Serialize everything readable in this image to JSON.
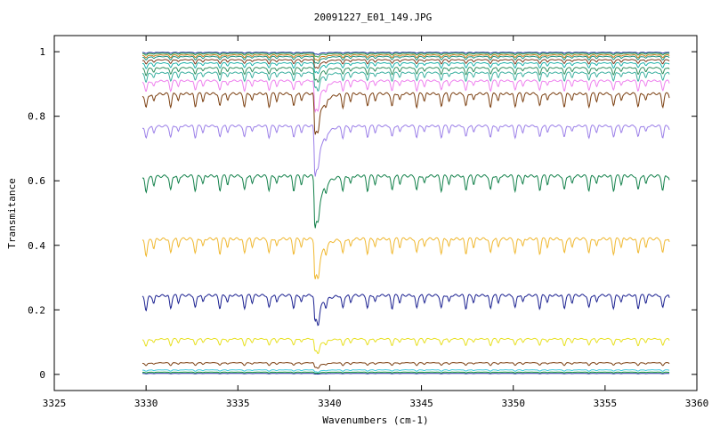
{
  "chart_data": {
    "type": "line",
    "title": "20091227_E01_149.JPG",
    "xlabel": "Wavenumbers (cm-1)",
    "ylabel": "Transmitance",
    "xlim": [
      3325,
      3360
    ],
    "ylim": [
      -0.05,
      1.05
    ],
    "x_ticks": [
      3325,
      3330,
      3335,
      3340,
      3345,
      3350,
      3355,
      3360
    ],
    "y_ticks": [
      0,
      0.2,
      0.4,
      0.6,
      0.8,
      1
    ],
    "x_tick_labels": [
      "3325",
      "3330",
      "3335",
      "3340",
      "3345",
      "3350",
      "3355",
      "3360"
    ],
    "y_tick_labels": [
      "0",
      "0.2",
      "0.4",
      "0.6",
      "0.8",
      "1"
    ],
    "grid": false,
    "legend": "none",
    "x_range_of_data": [
      3329.8,
      3358.5
    ],
    "main_line_x": 3339.2,
    "comb_line_spacing": 1.34,
    "comb_first_line_x": 3330.0,
    "series": [
      {
        "color": "#1f2f9f",
        "baseline": 0.998,
        "weak_dip": 0.003,
        "main_dip": 0.006
      },
      {
        "color": "#2a9d44",
        "baseline": 0.995,
        "weak_dip": 0.005,
        "main_dip": 0.01
      },
      {
        "color": "#c47a1a",
        "baseline": 0.99,
        "weak_dip": 0.008,
        "main_dip": 0.015
      },
      {
        "color": "#1e8f7a",
        "baseline": 0.985,
        "weak_dip": 0.01,
        "main_dip": 0.02
      },
      {
        "color": "#7a3a1a",
        "baseline": 0.975,
        "weak_dip": 0.012,
        "main_dip": 0.025
      },
      {
        "color": "#20b2aa",
        "baseline": 0.965,
        "weak_dip": 0.015,
        "main_dip": 0.03
      },
      {
        "color": "#2f8f5f",
        "baseline": 0.95,
        "weak_dip": 0.02,
        "main_dip": 0.04
      },
      {
        "color": "#3cb0a0",
        "baseline": 0.935,
        "weak_dip": 0.025,
        "main_dip": 0.05
      },
      {
        "color": "#ee82ee",
        "baseline": 0.91,
        "weak_dip": 0.03,
        "main_dip": 0.1
      },
      {
        "color": "#7b3f10",
        "baseline": 0.87,
        "weak_dip": 0.04,
        "main_dip": 0.13
      },
      {
        "color": "#9b7fe8",
        "baseline": 0.77,
        "weak_dip": 0.035,
        "main_dip": 0.16
      },
      {
        "color": "#12804a",
        "baseline": 0.615,
        "weak_dip": 0.045,
        "main_dip": 0.165
      },
      {
        "color": "#f0b830",
        "baseline": 0.42,
        "weak_dip": 0.045,
        "main_dip": 0.13
      },
      {
        "color": "#1a2090",
        "baseline": 0.245,
        "weak_dip": 0.04,
        "main_dip": 0.085
      },
      {
        "color": "#e8e020",
        "baseline": 0.11,
        "weak_dip": 0.02,
        "main_dip": 0.04
      },
      {
        "color": "#7b3f10",
        "baseline": 0.036,
        "weak_dip": 0.008,
        "main_dip": 0.015
      },
      {
        "color": "#40c8e0",
        "baseline": 0.014,
        "weak_dip": 0.004,
        "main_dip": 0.006
      },
      {
        "color": "#1a9e3a",
        "baseline": 0.007,
        "weak_dip": 0.002,
        "main_dip": 0.003
      },
      {
        "color": "#1f2f9f",
        "baseline": 0.003,
        "weak_dip": 0.001,
        "main_dip": 0.002
      }
    ]
  }
}
